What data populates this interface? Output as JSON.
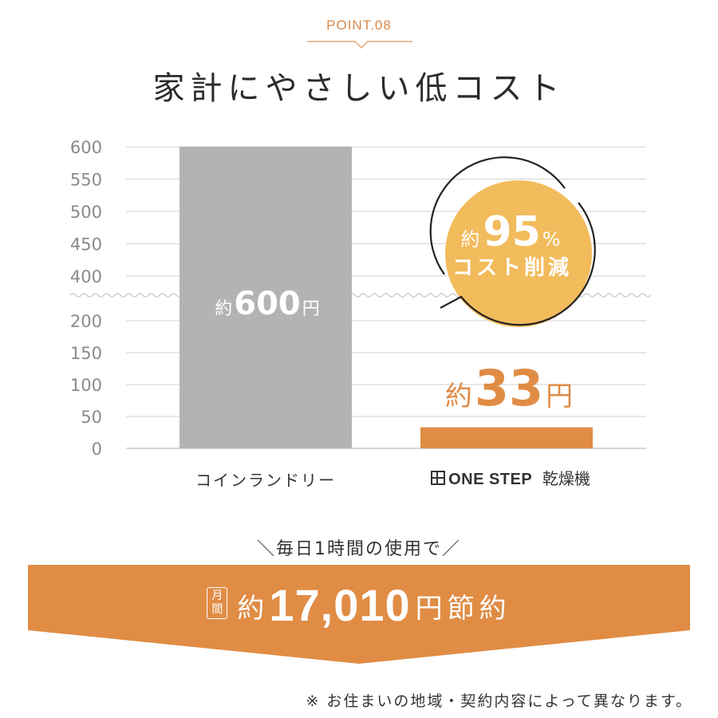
{
  "header": {
    "point_label": "POINT.08",
    "title": "家計にやさしい低コスト"
  },
  "colors": {
    "accent": "#E08C45",
    "bar_gray": "#B3B3B3",
    "badge": "#F2BB5C",
    "grid": "#D9D9D9",
    "text": "#333333"
  },
  "chart_data": {
    "type": "bar",
    "categories": [
      "コインランドリー",
      "ONE STEP 乾燥機"
    ],
    "values": [
      600,
      33
    ],
    "yticks": [
      0,
      50,
      100,
      150,
      200,
      400,
      450,
      500,
      550,
      600
    ],
    "ylim": [
      0,
      600
    ],
    "axis_break": [
      200,
      400
    ],
    "grid": true,
    "data_labels": [
      {
        "prefix": "約",
        "value": "600",
        "unit": "円"
      },
      {
        "prefix": "約",
        "value": "33",
        "unit": "円"
      }
    ]
  },
  "category_b": {
    "brand": "ONE STEP",
    "suffix": "乾燥機",
    "logo_icon": "grid-square-icon"
  },
  "badge": {
    "prefix": "約",
    "value": "95",
    "unit": "%",
    "line2": "コスト削減"
  },
  "usage_note": "＼毎日1時間の使用で／",
  "banner": {
    "tag_line1": "月",
    "tag_line2": "間",
    "prefix": "約",
    "amount": "17,010",
    "suffix": "円節約"
  },
  "footnote": "※ お住まいの地域・契約内容によって異なります。"
}
